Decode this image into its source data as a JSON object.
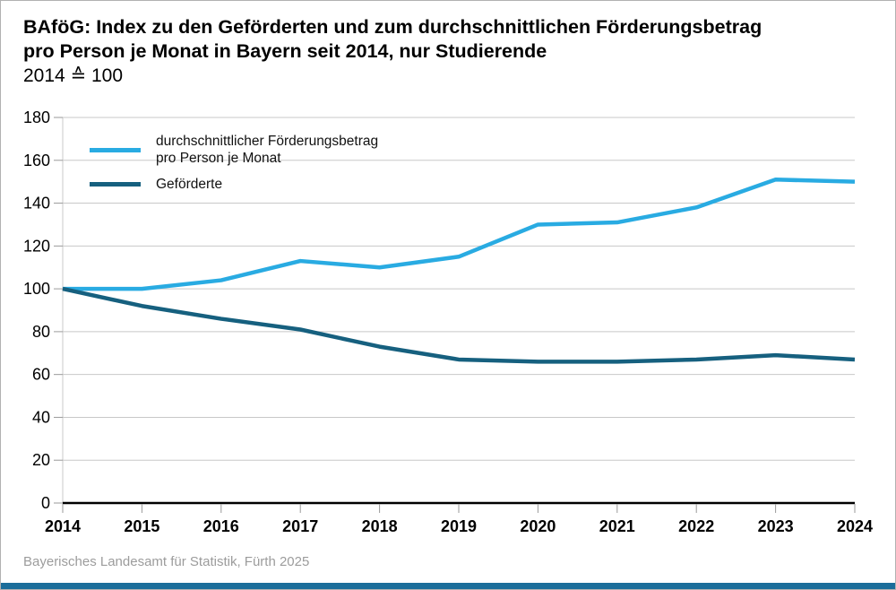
{
  "header": {
    "title_line1": "BAföG: Index zu den Geförderten und zum durchschnittlichen Förderungsbetrag",
    "title_line2": "pro Person je Monat in Bayern seit 2014, nur Studierende",
    "subtitle": "2014 ≙ 100"
  },
  "legend": {
    "entries": [
      {
        "label_line1": "durchschnittlicher Förderungsbetrag",
        "label_line2": "pro Person je Monat"
      },
      {
        "label_line1": "Geförderte",
        "label_line2": ""
      }
    ]
  },
  "footer": {
    "source": "Bayerisches Landesamt für Statistik, Fürth 2025"
  },
  "colors": {
    "series_betrag": "#29abe2",
    "series_gefoerderte": "#16607f",
    "grid": "#c8c8c8",
    "axis_line": "#c8c8c8",
    "tick": "#9a9a9a",
    "zero_axis": "#000000",
    "axis_label": "#000000",
    "footer_text": "#9c9c9c",
    "bottom_bar": "#1b6d9a",
    "frame_border": "#b1b1b1"
  },
  "chart_data": {
    "type": "line",
    "title": "BAföG: Index zu den Geförderten und zum durchschnittlichen Förderungsbetrag pro Person je Monat in Bayern seit 2014, nur Studierende",
    "subtitle": "2014 ≙ 100",
    "x": [
      2014,
      2015,
      2016,
      2017,
      2018,
      2019,
      2020,
      2021,
      2022,
      2023,
      2024
    ],
    "series": [
      {
        "id": "betrag",
        "name": "durchschnittlicher Förderungsbetrag pro Person je Monat",
        "color": "#29abe2",
        "values": [
          100,
          100,
          104,
          113,
          110,
          115,
          130,
          131,
          138,
          151,
          150
        ]
      },
      {
        "id": "gefoerderte",
        "name": "Geförderte",
        "color": "#16607f",
        "values": [
          100,
          92,
          86,
          81,
          73,
          67,
          66,
          66,
          67,
          69,
          67
        ]
      }
    ],
    "xlabel": "",
    "ylabel": "",
    "ylim": [
      0,
      180
    ],
    "ytick_step": 20,
    "grid": "horizontal",
    "legend_position": "inside-top-left",
    "source": "Bayerisches Landesamt für Statistik, Fürth 2025"
  }
}
